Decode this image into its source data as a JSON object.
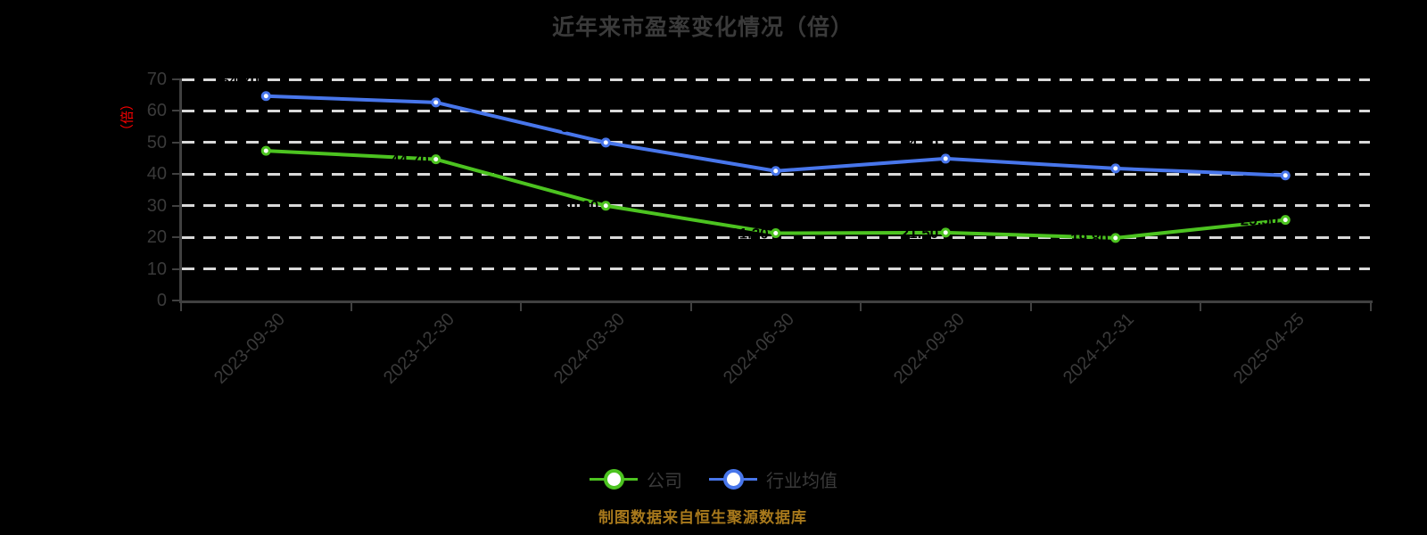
{
  "chart_data": {
    "type": "line",
    "title": "近年来市盈率变化情况（倍）",
    "ylabel": "（倍）",
    "footer": "制图数据来自恒生聚源数据库",
    "x_categories": [
      "2023-09-30",
      "2023-12-30",
      "2024-03-30",
      "2024-06-30",
      "2024-09-30",
      "2024-12-31",
      "2025-04-25"
    ],
    "series": [
      {
        "name": "行业均值",
        "color": "#4876eb",
        "values": [
          64.7,
          62.7,
          50.0,
          41.0,
          44.9,
          41.8,
          39.6
        ]
      },
      {
        "name": "公司",
        "color": "#4cc320",
        "values": [
          47.4,
          44.7,
          30.0,
          21.3,
          21.5,
          19.8,
          25.5
        ]
      }
    ],
    "legend_order": [
      "公司",
      "行业均值"
    ],
    "ylim": [
      0,
      70
    ],
    "yticks": [
      0,
      10,
      20,
      30,
      40,
      50,
      60,
      70
    ],
    "grid": "dashed horizontal gridlines",
    "legend_position": "bottom",
    "marker": "circle with white fill",
    "point_label_color": "#000000",
    "colors": {
      "background": "#000000",
      "axis": "#404040",
      "gridline": "#d9d9d9",
      "text": "#3a3a3a",
      "y_unit_label": "#fe0000",
      "footer": "#a8791c"
    }
  }
}
